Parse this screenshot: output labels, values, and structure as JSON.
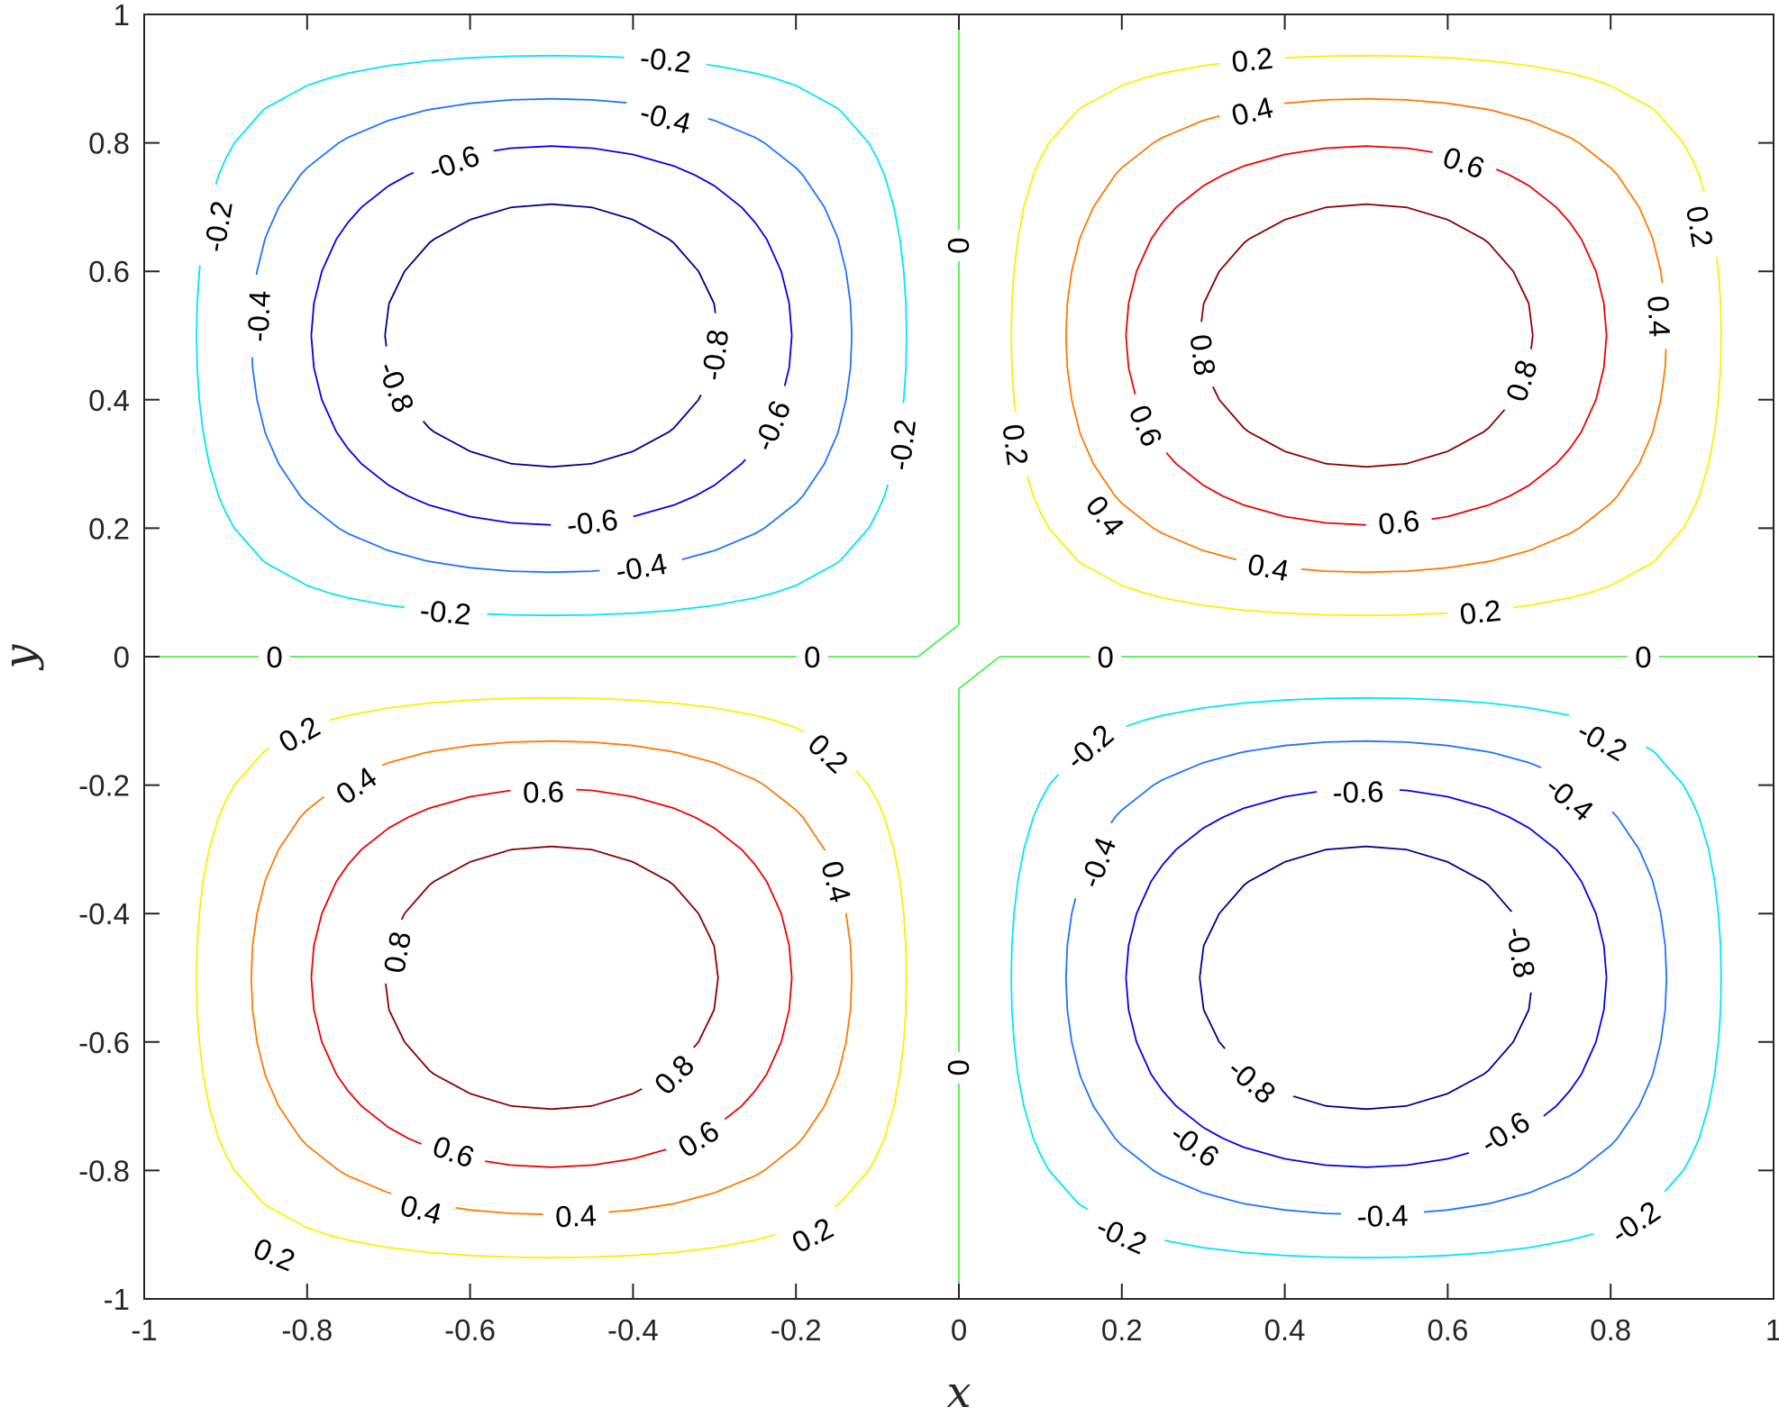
{
  "chart_data": {
    "type": "contour",
    "function": "sin(pi*x)*sin(pi*y)",
    "title": "",
    "xlabel": "x",
    "ylabel": "y",
    "xlim": [
      -1,
      1
    ],
    "ylim": [
      -1,
      1
    ],
    "x_ticks": [
      -1,
      -0.8,
      -0.6,
      -0.4,
      -0.2,
      0,
      0.2,
      0.4,
      0.6,
      0.8,
      1
    ],
    "x_tick_labels": [
      "-1",
      "-0.8",
      "-0.6",
      "-0.4",
      "-0.2",
      "0",
      "0.2",
      "0.4",
      "0.6",
      "0.8",
      "1"
    ],
    "y_ticks": [
      -1,
      -0.8,
      -0.6,
      -0.4,
      -0.2,
      0,
      0.2,
      0.4,
      0.6,
      0.8,
      1
    ],
    "y_tick_labels": [
      "-1",
      "-0.8",
      "-0.6",
      "-0.4",
      "-0.2",
      "0",
      "0.2",
      "0.4",
      "0.6",
      "0.8",
      "1"
    ],
    "grid": false,
    "levels": [
      {
        "value": -0.8,
        "label": "-0.8",
        "color": "#00008b"
      },
      {
        "value": -0.6,
        "label": "-0.6",
        "color": "#0000ee"
      },
      {
        "value": -0.4,
        "label": "-0.4",
        "color": "#1e73ff"
      },
      {
        "value": -0.2,
        "label": "-0.2",
        "color": "#00e5ff"
      },
      {
        "value": 0,
        "label": "0",
        "color": "#4ef04e"
      },
      {
        "value": 0.2,
        "label": "0.2",
        "color": "#ffee00"
      },
      {
        "value": 0.4,
        "label": "0.4",
        "color": "#ff7a00"
      },
      {
        "value": 0.6,
        "label": "0.6",
        "color": "#ee0000"
      },
      {
        "value": 0.8,
        "label": "0.8",
        "color": "#8b0000"
      }
    ],
    "contour_labels": [
      {
        "text": "-0.2",
        "x": -0.36,
        "y": 0.93
      },
      {
        "text": "-0.4",
        "x": -0.36,
        "y": 0.84
      },
      {
        "text": "-0.6",
        "x": -0.62,
        "y": 0.77
      },
      {
        "text": "-0.2",
        "x": -0.91,
        "y": 0.67
      },
      {
        "text": "-0.4",
        "x": -0.86,
        "y": 0.53
      },
      {
        "text": "-0.8",
        "x": -0.3,
        "y": 0.47
      },
      {
        "text": "-0.8",
        "x": -0.69,
        "y": 0.42
      },
      {
        "text": "-0.6",
        "x": -0.23,
        "y": 0.36
      },
      {
        "text": "-0.2",
        "x": -0.07,
        "y": 0.33
      },
      {
        "text": "-0.6",
        "x": -0.45,
        "y": 0.21
      },
      {
        "text": "-0.4",
        "x": -0.39,
        "y": 0.14
      },
      {
        "text": "-0.2",
        "x": -0.63,
        "y": 0.07
      },
      {
        "text": "0",
        "x": 0.0,
        "y": 0.64
      },
      {
        "text": "0",
        "x": -0.84,
        "y": 0.0
      },
      {
        "text": "0",
        "x": -0.18,
        "y": 0.0
      },
      {
        "text": "0",
        "x": 0.18,
        "y": 0.0
      },
      {
        "text": "0",
        "x": 0.84,
        "y": 0.0
      },
      {
        "text": "0",
        "x": 0.0,
        "y": -0.64
      },
      {
        "text": "0.2",
        "x": 0.36,
        "y": 0.93
      },
      {
        "text": "0.4",
        "x": 0.36,
        "y": 0.85
      },
      {
        "text": "0.6",
        "x": 0.62,
        "y": 0.77
      },
      {
        "text": "0.2",
        "x": 0.91,
        "y": 0.67
      },
      {
        "text": "0.4",
        "x": 0.86,
        "y": 0.53
      },
      {
        "text": "0.8",
        "x": 0.3,
        "y": 0.47
      },
      {
        "text": "0.8",
        "x": 0.69,
        "y": 0.43
      },
      {
        "text": "0.6",
        "x": 0.23,
        "y": 0.36
      },
      {
        "text": "0.2",
        "x": 0.07,
        "y": 0.33
      },
      {
        "text": "0.4",
        "x": 0.18,
        "y": 0.22
      },
      {
        "text": "0.6",
        "x": 0.54,
        "y": 0.21
      },
      {
        "text": "0.4",
        "x": 0.38,
        "y": 0.14
      },
      {
        "text": "0.2",
        "x": 0.64,
        "y": 0.07
      },
      {
        "text": "0.2",
        "x": -0.81,
        "y": -0.12
      },
      {
        "text": "0.2",
        "x": -0.16,
        "y": -0.15
      },
      {
        "text": "0.4",
        "x": -0.74,
        "y": -0.2
      },
      {
        "text": "0.6",
        "x": -0.51,
        "y": -0.21
      },
      {
        "text": "0.4",
        "x": -0.15,
        "y": -0.35
      },
      {
        "text": "0.8",
        "x": -0.69,
        "y": -0.46
      },
      {
        "text": "0.8",
        "x": -0.35,
        "y": -0.65
      },
      {
        "text": "0.6",
        "x": -0.62,
        "y": -0.77
      },
      {
        "text": "0.6",
        "x": -0.32,
        "y": -0.75
      },
      {
        "text": "0.4",
        "x": -0.66,
        "y": -0.86
      },
      {
        "text": "0.4",
        "x": -0.47,
        "y": -0.87
      },
      {
        "text": "0.2",
        "x": -0.84,
        "y": -0.93
      },
      {
        "text": "0.2",
        "x": -0.18,
        "y": -0.9
      },
      {
        "text": "-0.2",
        "x": 0.16,
        "y": -0.14
      },
      {
        "text": "-0.2",
        "x": 0.79,
        "y": -0.13
      },
      {
        "text": "-0.4",
        "x": 0.75,
        "y": -0.22
      },
      {
        "text": "-0.6",
        "x": 0.49,
        "y": -0.21
      },
      {
        "text": "-0.4",
        "x": 0.17,
        "y": -0.32
      },
      {
        "text": "-0.8",
        "x": 0.69,
        "y": -0.46
      },
      {
        "text": "-0.8",
        "x": 0.36,
        "y": -0.66
      },
      {
        "text": "-0.6",
        "x": 0.29,
        "y": -0.76
      },
      {
        "text": "-0.6",
        "x": 0.67,
        "y": -0.74
      },
      {
        "text": "-0.4",
        "x": 0.52,
        "y": -0.87
      },
      {
        "text": "-0.2",
        "x": 0.2,
        "y": -0.9
      },
      {
        "text": "-0.2",
        "x": 0.83,
        "y": -0.88
      }
    ]
  }
}
